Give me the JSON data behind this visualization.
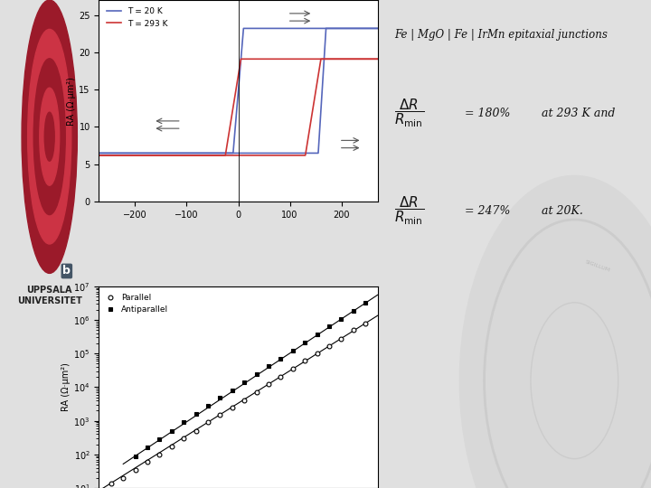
{
  "title_text": "Fe | MgO | Fe | IrMn epitaxial junctions",
  "panel_a": {
    "ylabel": "RA (Ω·μm²)",
    "xlim": [
      -270,
      270
    ],
    "ylim": [
      0,
      27
    ],
    "yticks": [
      0,
      5,
      10,
      15,
      20,
      25
    ],
    "xticks": [
      -200,
      -100,
      0,
      100,
      200
    ],
    "legend": [
      "T = 20 K",
      "T = 293 K"
    ],
    "color_20K": "#5566bb",
    "color_293K": "#cc3333",
    "baseline_20K": 6.5,
    "peak_20K": 23.2,
    "baseline_293K": 6.2,
    "peak_293K": 19.1,
    "switch1_20K": [
      -10,
      10
    ],
    "switch2_20K": [
      155,
      170
    ],
    "switch1_293K": [
      -25,
      5
    ],
    "switch2_293K": [
      130,
      160
    ]
  },
  "panel_b": {
    "ylabel": "RA (Ω·μm²)",
    "xlim": [
      1.0,
      3.3
    ],
    "ylim_log": [
      10,
      10000000.0
    ],
    "parallel_x": [
      1.1,
      1.2,
      1.3,
      1.4,
      1.5,
      1.6,
      1.7,
      1.8,
      1.9,
      2.0,
      2.1,
      2.2,
      2.3,
      2.4,
      2.5,
      2.6,
      2.7,
      2.8,
      2.9,
      3.0,
      3.1,
      3.2
    ],
    "parallel_y": [
      14,
      20,
      35,
      60,
      100,
      170,
      300,
      500,
      900,
      1500,
      2500,
      4000,
      7000,
      12000,
      20000,
      35000,
      60000,
      100000,
      170000,
      280000,
      500000,
      800000
    ],
    "antiparallel_x": [
      1.3,
      1.4,
      1.5,
      1.6,
      1.7,
      1.8,
      1.9,
      2.0,
      2.1,
      2.2,
      2.3,
      2.4,
      2.5,
      2.6,
      2.7,
      2.8,
      2.9,
      3.0,
      3.1,
      3.2
    ],
    "antiparallel_y": [
      90,
      160,
      290,
      500,
      900,
      1600,
      2800,
      4800,
      8000,
      14000,
      24000,
      42000,
      70000,
      120000,
      220000,
      380000,
      650000,
      1100000,
      1900000,
      3200000
    ]
  },
  "bg_color": "#e0e0e0",
  "panel_bg": "#ffffff"
}
